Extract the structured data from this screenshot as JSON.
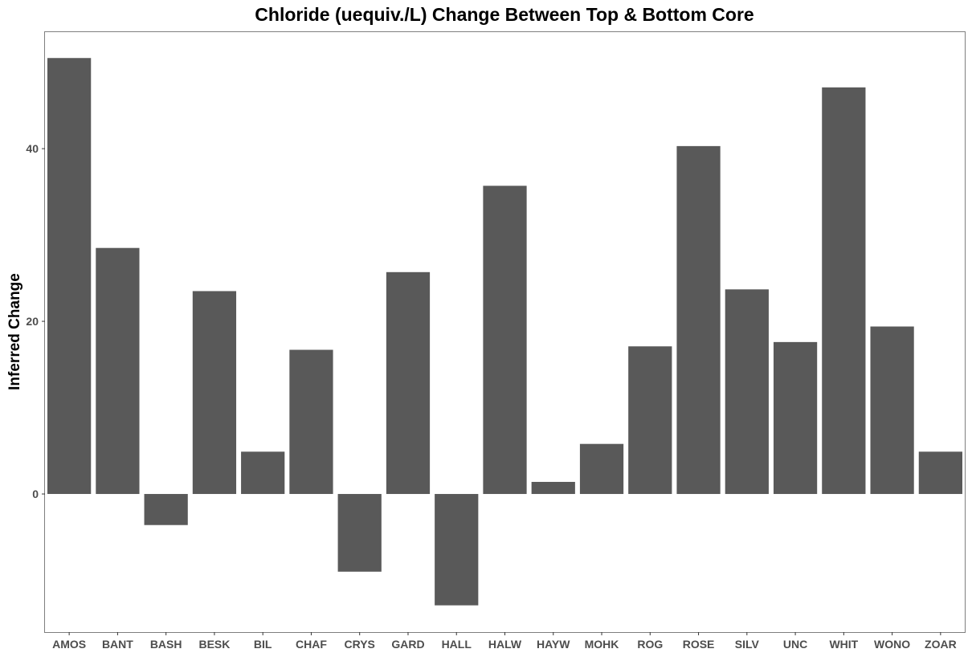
{
  "chart_data": {
    "type": "bar",
    "title": "Chloride (uequiv./L) Change Between Top & Bottom Core",
    "xlabel": "",
    "ylabel": "Inferred Change",
    "categories": [
      "AMOS",
      "BANT",
      "BASH",
      "BESK",
      "BIL",
      "CHAF",
      "CRYS",
      "GARD",
      "HALL",
      "HALW",
      "HAYW",
      "MOHK",
      "ROG",
      "ROSE",
      "SILV",
      "UNC",
      "WHIT",
      "WONO",
      "ZOAR"
    ],
    "values": [
      50.5,
      28.5,
      -3.6,
      23.5,
      4.9,
      16.7,
      -9.0,
      25.7,
      -12.9,
      35.7,
      1.4,
      5.8,
      17.1,
      40.3,
      23.7,
      17.6,
      47.1,
      19.4,
      4.9
    ],
    "ylim": [
      -16,
      53.5
    ],
    "yticks": [
      0,
      20,
      40
    ],
    "grid": false,
    "legend": "none",
    "bar_color": "#595959",
    "panel_border_color": "#7f7f7f"
  }
}
